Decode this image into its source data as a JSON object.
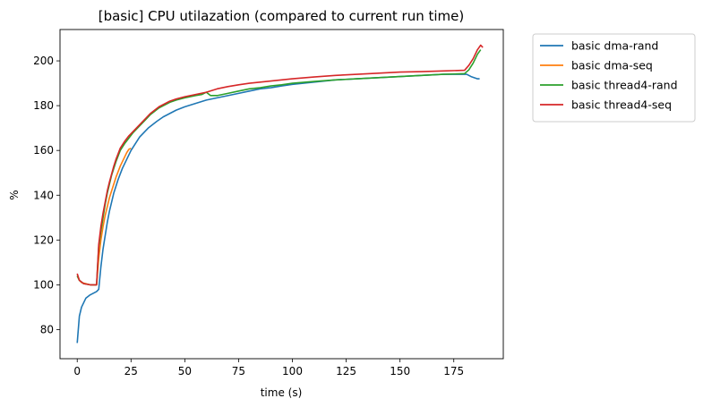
{
  "chart_data": {
    "type": "line",
    "title": "[basic] CPU utilazation (compared to current run time)",
    "xlabel": "time (s)",
    "ylabel": "%",
    "xlim": [
      -8,
      198
    ],
    "ylim": [
      67,
      214
    ],
    "xticks": [
      0,
      25,
      50,
      75,
      100,
      125,
      150,
      175
    ],
    "yticks": [
      80,
      100,
      120,
      140,
      160,
      180,
      200
    ],
    "grid": false,
    "legend_position": "outside-top-right",
    "series": [
      {
        "name": "basic dma-rand",
        "color": "#1f77b4",
        "points": [
          [
            0,
            74
          ],
          [
            0.5,
            80
          ],
          [
            1,
            86
          ],
          [
            2,
            90
          ],
          [
            3,
            92
          ],
          [
            4,
            94
          ],
          [
            6,
            95.5
          ],
          [
            8,
            96.5
          ],
          [
            9,
            97
          ],
          [
            10,
            98
          ],
          [
            11,
            108
          ],
          [
            12,
            116
          ],
          [
            13,
            122
          ],
          [
            14,
            128
          ],
          [
            15,
            133
          ],
          [
            16,
            137
          ],
          [
            17,
            141
          ],
          [
            18,
            144
          ],
          [
            19,
            147
          ],
          [
            20,
            149.5
          ],
          [
            21,
            152
          ],
          [
            22,
            154
          ],
          [
            23,
            156
          ],
          [
            24,
            158
          ],
          [
            25,
            160
          ],
          [
            27,
            163
          ],
          [
            29,
            166
          ],
          [
            31,
            168
          ],
          [
            33,
            170
          ],
          [
            35,
            171.5
          ],
          [
            37,
            173
          ],
          [
            40,
            175
          ],
          [
            43,
            176.5
          ],
          [
            46,
            178
          ],
          [
            50,
            179.5
          ],
          [
            55,
            181
          ],
          [
            60,
            182.5
          ],
          [
            65,
            183.5
          ],
          [
            70,
            184.5
          ],
          [
            75,
            185.5
          ],
          [
            80,
            186.5
          ],
          [
            85,
            187.5
          ],
          [
            90,
            188
          ],
          [
            95,
            188.8
          ],
          [
            100,
            189.5
          ],
          [
            110,
            190.5
          ],
          [
            120,
            191.5
          ],
          [
            130,
            192
          ],
          [
            140,
            192.5
          ],
          [
            150,
            193
          ],
          [
            160,
            193.5
          ],
          [
            170,
            194
          ],
          [
            178,
            194
          ],
          [
            181,
            194
          ],
          [
            183,
            193
          ],
          [
            186,
            192
          ],
          [
            187,
            192
          ]
        ]
      },
      {
        "name": "basic dma-seq",
        "color": "#ff7f0e",
        "points": [
          [
            0,
            104
          ],
          [
            1,
            102
          ],
          [
            2,
            101
          ],
          [
            4,
            100.5
          ],
          [
            6,
            100
          ],
          [
            8,
            100
          ],
          [
            9,
            100
          ],
          [
            10,
            112
          ],
          [
            11,
            120
          ],
          [
            12,
            126
          ],
          [
            13,
            131
          ],
          [
            14,
            135
          ],
          [
            15,
            139
          ],
          [
            16,
            142
          ],
          [
            17,
            145
          ],
          [
            18,
            148
          ],
          [
            19,
            150.5
          ],
          [
            20,
            153
          ],
          [
            21,
            155
          ],
          [
            22,
            157
          ],
          [
            23,
            159
          ],
          [
            24,
            160.5
          ],
          [
            25,
            161
          ]
        ]
      },
      {
        "name": "basic thread4-rand",
        "color": "#2ca02c",
        "points": [
          [
            0,
            104
          ],
          [
            1,
            102
          ],
          [
            3,
            100.5
          ],
          [
            6,
            100
          ],
          [
            9,
            100
          ],
          [
            10,
            117
          ],
          [
            11,
            124
          ],
          [
            12,
            130
          ],
          [
            13,
            136
          ],
          [
            14,
            141
          ],
          [
            15,
            145
          ],
          [
            16,
            149
          ],
          [
            17,
            152
          ],
          [
            18,
            155
          ],
          [
            19,
            157.5
          ],
          [
            20,
            160
          ],
          [
            21,
            161.5
          ],
          [
            22,
            163
          ],
          [
            24,
            165.5
          ],
          [
            26,
            168
          ],
          [
            28,
            170
          ],
          [
            30,
            172
          ],
          [
            32,
            174
          ],
          [
            34,
            176
          ],
          [
            36,
            177.5
          ],
          [
            38,
            179
          ],
          [
            40,
            180
          ],
          [
            43,
            181.5
          ],
          [
            46,
            182.5
          ],
          [
            50,
            183.5
          ],
          [
            55,
            184.5
          ],
          [
            58,
            185
          ],
          [
            60,
            186
          ],
          [
            62,
            184.5
          ],
          [
            65,
            184.5
          ],
          [
            70,
            185.5
          ],
          [
            75,
            186.5
          ],
          [
            80,
            187.5
          ],
          [
            85,
            188
          ],
          [
            90,
            188.8
          ],
          [
            95,
            189.3
          ],
          [
            100,
            190
          ],
          [
            110,
            190.8
          ],
          [
            120,
            191.5
          ],
          [
            130,
            192
          ],
          [
            140,
            192.5
          ],
          [
            150,
            193
          ],
          [
            160,
            193.5
          ],
          [
            170,
            194
          ],
          [
            180,
            194.3
          ],
          [
            182,
            196
          ],
          [
            184,
            199
          ],
          [
            186,
            203
          ],
          [
            187.5,
            205
          ]
        ]
      },
      {
        "name": "basic thread4-seq",
        "color": "#d62728",
        "points": [
          [
            0,
            105
          ],
          [
            1,
            102
          ],
          [
            3,
            100.5
          ],
          [
            6,
            100
          ],
          [
            9,
            100
          ],
          [
            10,
            118
          ],
          [
            11,
            126
          ],
          [
            12,
            132
          ],
          [
            13,
            137
          ],
          [
            14,
            142
          ],
          [
            15,
            146
          ],
          [
            16,
            149.5
          ],
          [
            17,
            153
          ],
          [
            18,
            156
          ],
          [
            19,
            158.5
          ],
          [
            20,
            161
          ],
          [
            21,
            162.5
          ],
          [
            22,
            164
          ],
          [
            24,
            166.5
          ],
          [
            26,
            168.5
          ],
          [
            28,
            170.5
          ],
          [
            30,
            172.5
          ],
          [
            32,
            174.5
          ],
          [
            34,
            176.5
          ],
          [
            36,
            178
          ],
          [
            38,
            179.5
          ],
          [
            40,
            180.5
          ],
          [
            43,
            182
          ],
          [
            46,
            183
          ],
          [
            50,
            184
          ],
          [
            55,
            185
          ],
          [
            60,
            186
          ],
          [
            65,
            187.5
          ],
          [
            70,
            188.5
          ],
          [
            75,
            189.3
          ],
          [
            80,
            190
          ],
          [
            85,
            190.5
          ],
          [
            90,
            191
          ],
          [
            100,
            192
          ],
          [
            110,
            192.8
          ],
          [
            120,
            193.5
          ],
          [
            130,
            194
          ],
          [
            140,
            194.5
          ],
          [
            150,
            195
          ],
          [
            160,
            195.2
          ],
          [
            170,
            195.5
          ],
          [
            180,
            195.8
          ],
          [
            182,
            198
          ],
          [
            184,
            201
          ],
          [
            186,
            205
          ],
          [
            187.5,
            207
          ],
          [
            188.5,
            206
          ]
        ]
      }
    ]
  }
}
